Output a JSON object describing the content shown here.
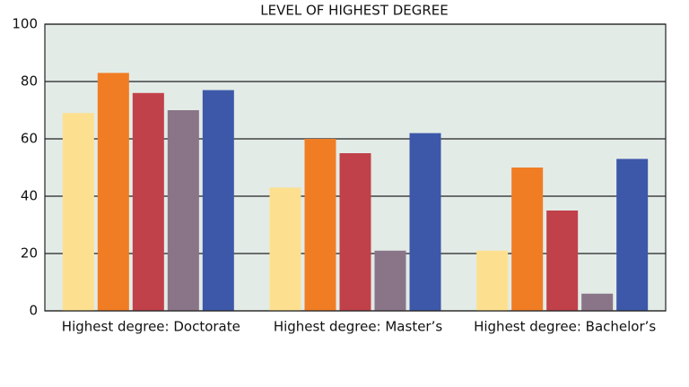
{
  "chart_data": {
    "type": "bar",
    "title": "LEVEL OF HIGHEST DEGREE",
    "categories": [
      "Highest degree: Doctorate",
      "Highest degree: Master’s",
      "Highest degree: Bachelor’s"
    ],
    "series": [
      {
        "color": "#fde08f",
        "values": [
          69,
          43,
          21
        ]
      },
      {
        "color": "#f07d24",
        "values": [
          83,
          60,
          50
        ]
      },
      {
        "color": "#c0414a",
        "values": [
          76,
          55,
          35
        ]
      },
      {
        "color": "#8a7588",
        "values": [
          70,
          21,
          6
        ]
      },
      {
        "color": "#3d58a8",
        "values": [
          77,
          62,
          53
        ]
      }
    ],
    "ylim": [
      0,
      100
    ],
    "yticks": [
      0,
      20,
      40,
      60,
      80,
      100
    ],
    "grid": true,
    "background": "#e3ebe7"
  }
}
